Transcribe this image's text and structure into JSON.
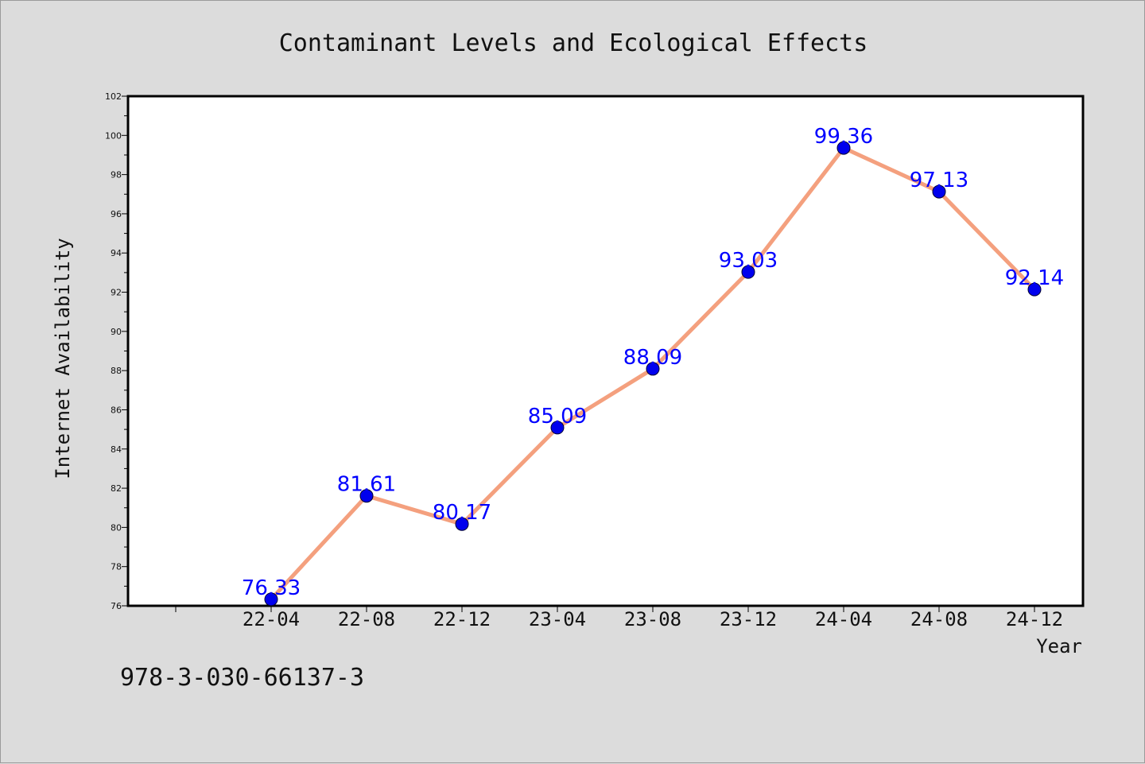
{
  "chart_data": {
    "type": "line",
    "title": "Contaminant Levels and Ecological Effects",
    "xlabel": "Year",
    "ylabel": "Internet Availability",
    "categories": [
      "22-04",
      "22-08",
      "22-12",
      "23-04",
      "23-08",
      "23-12",
      "24-04",
      "24-08",
      "24-12"
    ],
    "values": [
      76.33,
      81.61,
      80.17,
      85.09,
      88.09,
      93.03,
      99.36,
      97.13,
      92.14
    ],
    "data_labels": [
      "76.33",
      "81.61",
      "80.17",
      "85.09",
      "88.09",
      "93.03",
      "99.36",
      "97.13",
      "92.14"
    ],
    "ylim": [
      76,
      102
    ],
    "yticks": [
      "76",
      "78",
      "80",
      "82",
      "84",
      "86",
      "88",
      "90",
      "92",
      "94",
      "96",
      "98",
      "100",
      "102"
    ],
    "grid": false,
    "legend": "none",
    "colors": {
      "line": "#f4a07e",
      "marker": "#0000ee",
      "label": "#0000ff",
      "background": "#dcdcdc",
      "plot": "#ffffff"
    }
  },
  "footer": {
    "code": "978-3-030-66137-3"
  }
}
